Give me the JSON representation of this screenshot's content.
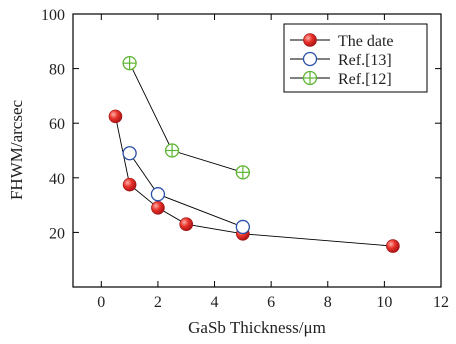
{
  "chart_data": {
    "type": "scatter",
    "xlabel": "GaSb Thickness/μm",
    "ylabel": "FHWM/arcsec",
    "xlim": [
      -1,
      12
    ],
    "ylim": [
      0,
      100
    ],
    "xticks": [
      0,
      2,
      4,
      6,
      8,
      10,
      12
    ],
    "yticks": [
      20,
      40,
      60,
      80,
      100
    ],
    "grid": false,
    "legend_position": "top-right",
    "series": [
      {
        "name": "The date",
        "marker": "filled-circle",
        "color": "#e0262b",
        "x": [
          0.5,
          1.0,
          2.0,
          3.0,
          5.0,
          10.3
        ],
        "y": [
          62.5,
          37.5,
          29.0,
          23.0,
          19.5,
          15.0
        ]
      },
      {
        "name": "Ref.[13]",
        "marker": "open-circle",
        "color": "#2a4fa8",
        "x": [
          1.0,
          2.0,
          5.0
        ],
        "y": [
          49.0,
          34.0,
          22.0
        ]
      },
      {
        "name": "Ref.[12]",
        "marker": "crossed-circle",
        "color": "#5cb531",
        "x": [
          1.0,
          2.5,
          5.0
        ],
        "y": [
          82.0,
          50.0,
          42.0
        ]
      }
    ]
  }
}
